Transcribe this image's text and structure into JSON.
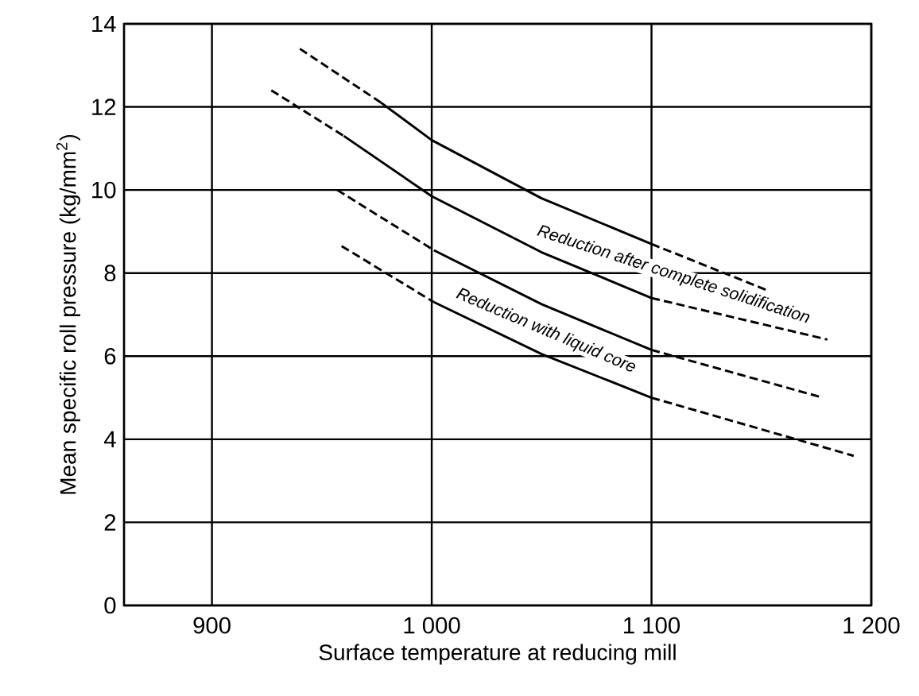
{
  "chart_data": {
    "type": "line",
    "xlabel": "Surface temperature at reducing mill",
    "ylabel": "Mean specific roll pressure (kg/mm$^{2}$)",
    "xlim": [
      860,
      1200
    ],
    "xticks": [
      900,
      {
        "value": 1000,
        "label": "1 000"
      },
      {
        "value": 1100,
        "label": "1 100"
      },
      {
        "value": 1200,
        "label": "1 200"
      }
    ],
    "ylim": [
      0,
      14
    ],
    "yticks": [
      0,
      2,
      4,
      6,
      8,
      10,
      12,
      14
    ],
    "grid": true,
    "marker": "none",
    "series": [
      {
        "color": "#000000",
        "line_style": "dashed",
        "x": [
          940,
          977
        ],
        "values": [
          13.4,
          12.1
        ]
      },
      {
        "color": "#000000",
        "line_style": "solid",
        "x": [
          977,
          1000,
          1050,
          1100
        ],
        "values": [
          12.1,
          11.2,
          9.8,
          8.7
        ]
      },
      {
        "color": "#000000",
        "line_style": "dashed",
        "x": [
          1100,
          1152
        ],
        "values": [
          8.7,
          7.6
        ]
      },
      {
        "color": "#000000",
        "line_style": "dashed",
        "x": [
          927,
          960
        ],
        "values": [
          12.4,
          11.3
        ]
      },
      {
        "color": "#000000",
        "line_style": "solid",
        "x": [
          960,
          1000,
          1050,
          1100
        ],
        "values": [
          11.3,
          9.85,
          8.5,
          7.4
        ]
      },
      {
        "color": "#000000",
        "line_style": "dashed",
        "x": [
          1100,
          1180
        ],
        "values": [
          7.4,
          6.4
        ]
      },
      {
        "color": "#000000",
        "line_style": "dashed",
        "x": [
          957,
          1001
        ],
        "values": [
          10.0,
          8.55
        ]
      },
      {
        "color": "#000000",
        "line_style": "solid",
        "x": [
          1001,
          1050,
          1100
        ],
        "values": [
          8.55,
          7.25,
          6.15
        ]
      },
      {
        "color": "#000000",
        "line_style": "dashed",
        "x": [
          1100,
          1178
        ],
        "values": [
          6.15,
          5.0
        ]
      },
      {
        "color": "#000000",
        "line_style": "dashed",
        "x": [
          959,
          1001
        ],
        "values": [
          8.65,
          7.3
        ]
      },
      {
        "color": "#000000",
        "line_style": "solid",
        "x": [
          1001,
          1050,
          1100
        ],
        "values": [
          7.3,
          6.05,
          5.0
        ]
      },
      {
        "color": "#000000",
        "line_style": "dashed",
        "x": [
          1100,
          1192
        ],
        "values": [
          5.0,
          3.6
        ]
      }
    ],
    "annotations": [
      "Reduction after complete solidification",
      "Reduction with liquid core"
    ]
  }
}
